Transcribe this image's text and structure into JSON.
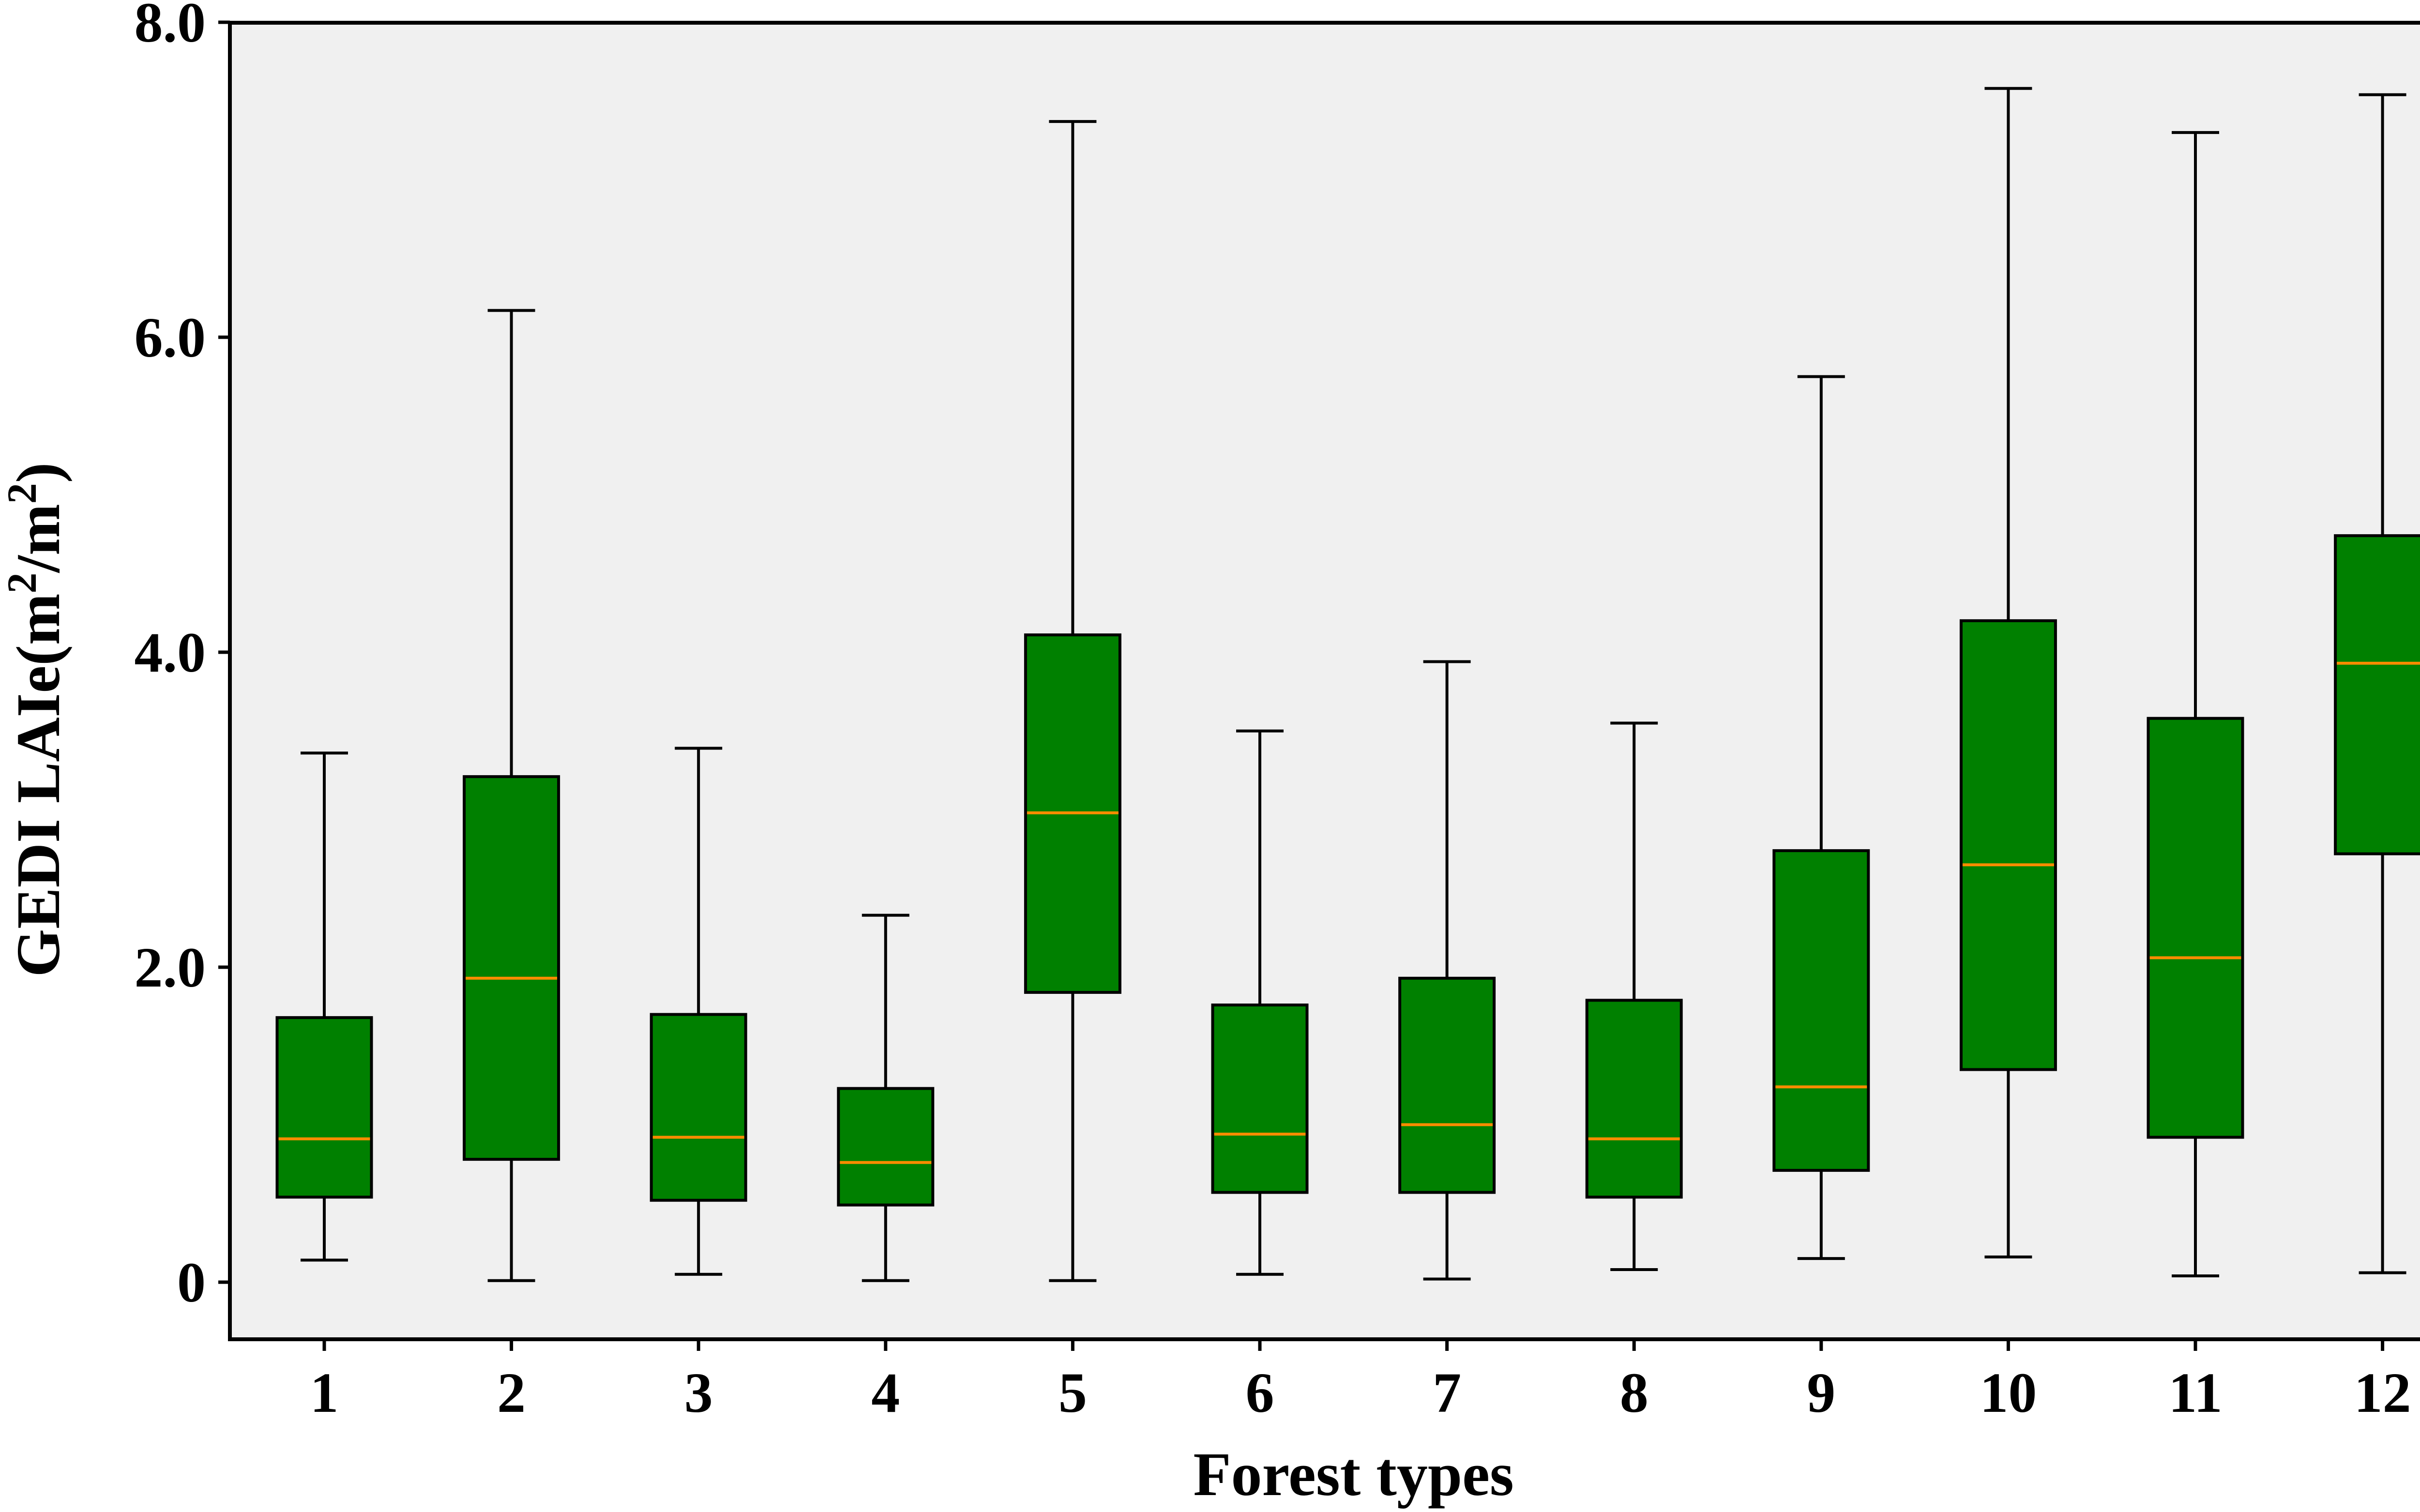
{
  "chart_data": {
    "type": "box",
    "title": "",
    "xlabel": "Forest types",
    "ylabel": {
      "prefix": "GEDI LAIe(m",
      "sup1": "2",
      "mid": "/m",
      "sup2": "2",
      "suffix": ")"
    },
    "ylim": [
      -0.38,
      8.0
    ],
    "yticks": [
      {
        "value": 0,
        "label": "0"
      },
      {
        "value": 2,
        "label": "2.0"
      },
      {
        "value": 4,
        "label": "4.0"
      },
      {
        "value": 6,
        "label": "6.0"
      },
      {
        "value": 8,
        "label": "8.0"
      }
    ],
    "categories": [
      "1",
      "2",
      "3",
      "4",
      "5",
      "6",
      "7",
      "8",
      "9",
      "10",
      "11",
      "12"
    ],
    "boxes": [
      {
        "category": "1",
        "whisker_low": 0.14,
        "q1": 0.54,
        "median": 0.91,
        "q3": 1.68,
        "whisker_high": 3.36
      },
      {
        "category": "2",
        "whisker_low": 0.01,
        "q1": 0.78,
        "median": 1.93,
        "q3": 3.21,
        "whisker_high": 6.17
      },
      {
        "category": "3",
        "whisker_low": 0.05,
        "q1": 0.52,
        "median": 0.92,
        "q3": 1.7,
        "whisker_high": 3.39
      },
      {
        "category": "4",
        "whisker_low": 0.01,
        "q1": 0.49,
        "median": 0.76,
        "q3": 1.23,
        "whisker_high": 2.33
      },
      {
        "category": "5",
        "whisker_low": 0.01,
        "q1": 1.84,
        "median": 2.98,
        "q3": 4.11,
        "whisker_high": 7.37
      },
      {
        "category": "6",
        "whisker_low": 0.05,
        "q1": 0.57,
        "median": 0.94,
        "q3": 1.76,
        "whisker_high": 3.5
      },
      {
        "category": "7",
        "whisker_low": 0.02,
        "q1": 0.57,
        "median": 1.0,
        "q3": 1.93,
        "whisker_high": 3.94
      },
      {
        "category": "8",
        "whisker_low": 0.08,
        "q1": 0.54,
        "median": 0.91,
        "q3": 1.79,
        "whisker_high": 3.55
      },
      {
        "category": "9",
        "whisker_low": 0.15,
        "q1": 0.71,
        "median": 1.24,
        "q3": 2.74,
        "whisker_high": 5.75
      },
      {
        "category": "10",
        "whisker_low": 0.16,
        "q1": 1.35,
        "median": 2.65,
        "q3": 4.2,
        "whisker_high": 7.58
      },
      {
        "category": "11",
        "whisker_low": 0.04,
        "q1": 0.92,
        "median": 2.06,
        "q3": 3.58,
        "whisker_high": 7.3
      },
      {
        "category": "12",
        "whisker_low": 0.06,
        "q1": 2.72,
        "median": 3.93,
        "q3": 4.74,
        "whisker_high": 7.54
      }
    ],
    "grid": false,
    "legend": "none",
    "colors": {
      "box_fill": "#008000",
      "box_edge": "#000000",
      "median": "#ff8c00",
      "whisker": "#000000",
      "plot_background": "#f0f0f0",
      "page_background": "#ffffff"
    }
  }
}
